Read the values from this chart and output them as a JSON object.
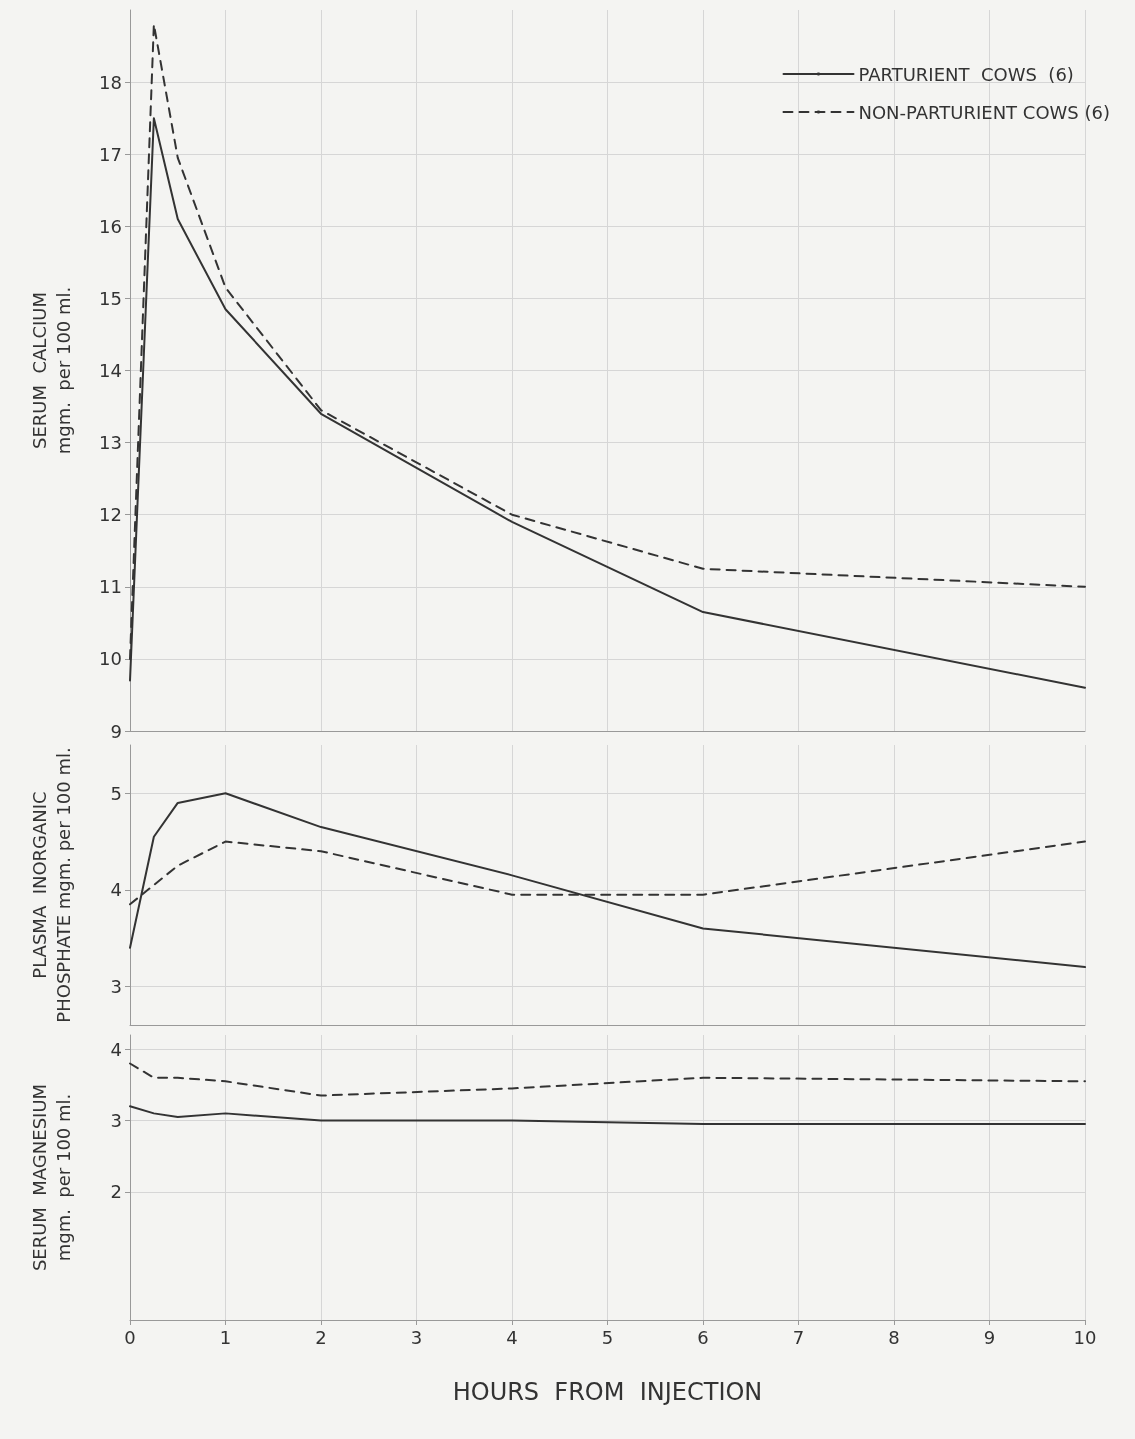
{
  "chart_data": [
    {
      "type": "line",
      "ylabel": "SERUM  CALCIUM\nmgm.  per 100 ml.",
      "x": [
        0,
        0.25,
        0.5,
        1,
        2,
        4,
        6,
        10
      ],
      "xlim": [
        0,
        10
      ],
      "xticks": [
        0,
        1,
        2,
        3,
        4,
        5,
        6,
        7,
        8,
        9,
        10
      ],
      "ylim": [
        9,
        19
      ],
      "yticks": [
        9,
        10,
        11,
        12,
        13,
        14,
        15,
        16,
        17,
        18
      ],
      "tick_labels": "y",
      "grid": true,
      "legend": "top right",
      "marker": "none",
      "series": [
        {
          "name": "PARTURIENT  COWS  (6)",
          "color": "#333333",
          "line_style": "solid",
          "values": [
            9.7,
            17.5,
            16.1,
            14.85,
            13.4,
            11.9,
            10.65,
            9.6
          ]
        },
        {
          "name": "NON-PARTURIENT COWS (6)",
          "color": "#333333",
          "line_style": "dashed",
          "values": [
            10.0,
            18.8,
            16.95,
            15.15,
            13.45,
            12.0,
            11.25,
            11.0
          ]
        }
      ]
    },
    {
      "type": "line",
      "ylabel": "PLASMA  INORGANIC\nPHOSPHATE mgm. per 100 ml.",
      "x": [
        0,
        0.25,
        0.5,
        1,
        2,
        4,
        6,
        10
      ],
      "xlim": [
        0,
        10
      ],
      "xticks": [
        0,
        1,
        2,
        3,
        4,
        5,
        6,
        7,
        8,
        9,
        10
      ],
      "ylim": [
        2.6,
        5.5
      ],
      "yticks": [
        3,
        4,
        5
      ],
      "tick_labels": "y",
      "grid": true,
      "marker": "none",
      "series": [
        {
          "color": "#333333",
          "line_style": "solid",
          "values": [
            3.4,
            4.55,
            4.9,
            5.0,
            4.65,
            4.15,
            3.6,
            3.2
          ]
        },
        {
          "color": "#333333",
          "line_style": "dashed",
          "values": [
            3.85,
            4.05,
            4.25,
            4.5,
            4.4,
            3.95,
            3.95,
            4.5
          ]
        }
      ]
    },
    {
      "type": "line",
      "ylabel": "SERUM  MAGNESIUM\nmgm.  per 100 ml.",
      "xlabel": "HOURS  FROM  INJECTION",
      "x": [
        0,
        0.25,
        0.5,
        1,
        2,
        4,
        6,
        10
      ],
      "xlim": [
        0,
        10
      ],
      "xticks": [
        0,
        1,
        2,
        3,
        4,
        5,
        6,
        7,
        8,
        9,
        10
      ],
      "ylim": [
        0.2,
        4.2
      ],
      "yticks": [
        2,
        3,
        4
      ],
      "grid": true,
      "marker": "none",
      "series": [
        {
          "color": "#333333",
          "line_style": "solid",
          "values": [
            3.2,
            3.1,
            3.05,
            3.1,
            3.0,
            3.0,
            2.95,
            2.95
          ]
        },
        {
          "color": "#333333",
          "line_style": "dashed",
          "values": [
            3.8,
            3.6,
            3.6,
            3.55,
            3.35,
            3.45,
            3.6,
            3.55
          ]
        }
      ]
    }
  ]
}
